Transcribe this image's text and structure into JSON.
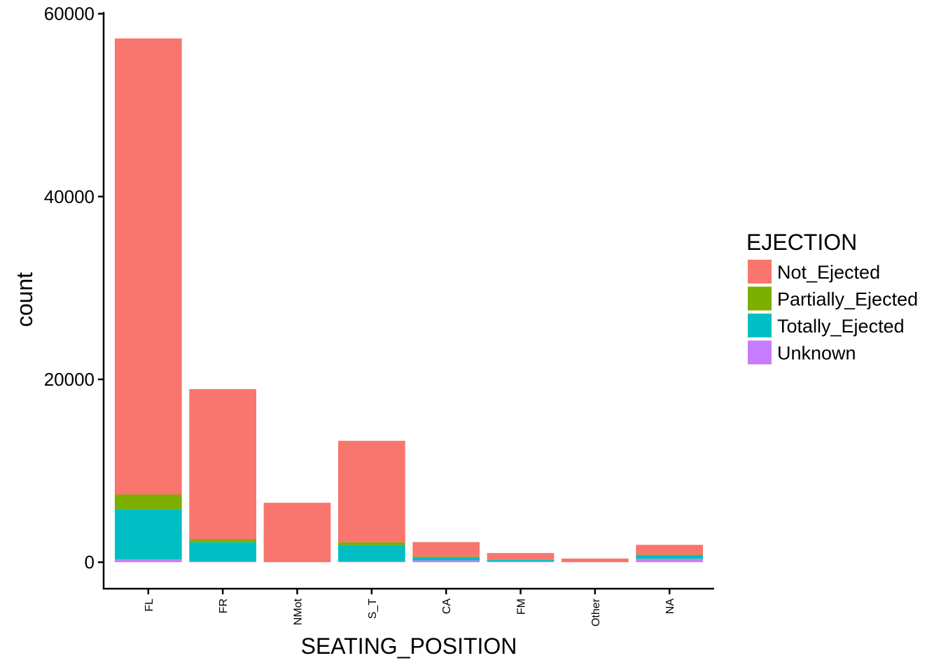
{
  "chart_data": {
    "type": "bar",
    "stacked": true,
    "xlabel": "SEATING_POSITION",
    "ylabel": "count",
    "ylim": [
      -2900,
      60200
    ],
    "y_ticks": [
      0,
      20000,
      40000,
      60000
    ],
    "y_tick_labels": [
      "0",
      "20000",
      "40000",
      "60000"
    ],
    "categories": [
      "FL",
      "FR",
      "NMot",
      "S_T",
      "CA",
      "FM",
      "Other",
      "NA"
    ],
    "series": [
      {
        "name": "Unknown",
        "color": "#C77CFF",
        "values": [
          300,
          80,
          0,
          80,
          200,
          100,
          0,
          380
        ]
      },
      {
        "name": "Totally_Ejected",
        "color": "#00BFC4",
        "values": [
          5500,
          2100,
          0,
          1800,
          350,
          150,
          0,
          400
        ]
      },
      {
        "name": "Partially_Ejected",
        "color": "#7CAE00",
        "values": [
          1600,
          350,
          0,
          300,
          60,
          20,
          0,
          50
        ]
      },
      {
        "name": "Not_Ejected",
        "color": "#F8766D",
        "values": [
          49900,
          16400,
          6500,
          11100,
          1590,
          730,
          400,
          1070
        ]
      }
    ],
    "legend": {
      "title": "EJECTION",
      "position": "right",
      "items": [
        "Not_Ejected",
        "Partially_Ejected",
        "Totally_Ejected",
        "Unknown"
      ]
    },
    "grid": false
  }
}
